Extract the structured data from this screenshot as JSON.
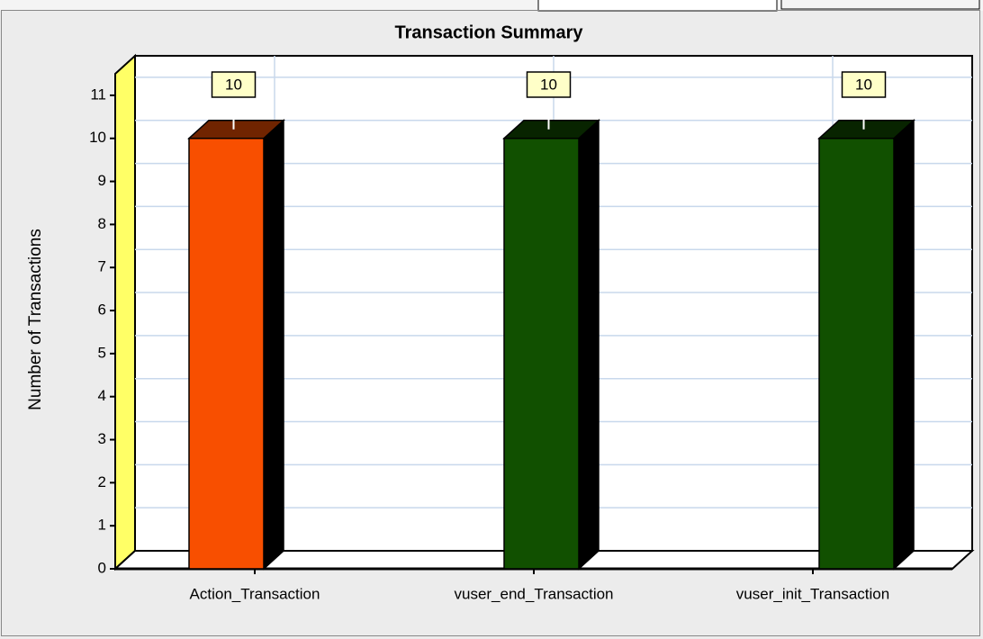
{
  "chart_data": {
    "type": "bar3d",
    "title": "Transaction Summary",
    "y_label": "Number of Transactions",
    "categories": [
      "Action_Transaction",
      "vuser_end_Transaction",
      "vuser_init_Transaction"
    ],
    "values": [
      10,
      10,
      10
    ],
    "colors": [
      "#f84f00",
      "#115000",
      "#115000"
    ],
    "ylim": [
      0,
      11.5
    ],
    "yticks": [
      0,
      1,
      2,
      3,
      4,
      5,
      6,
      7,
      8,
      9,
      10,
      11
    ],
    "grid": true
  }
}
